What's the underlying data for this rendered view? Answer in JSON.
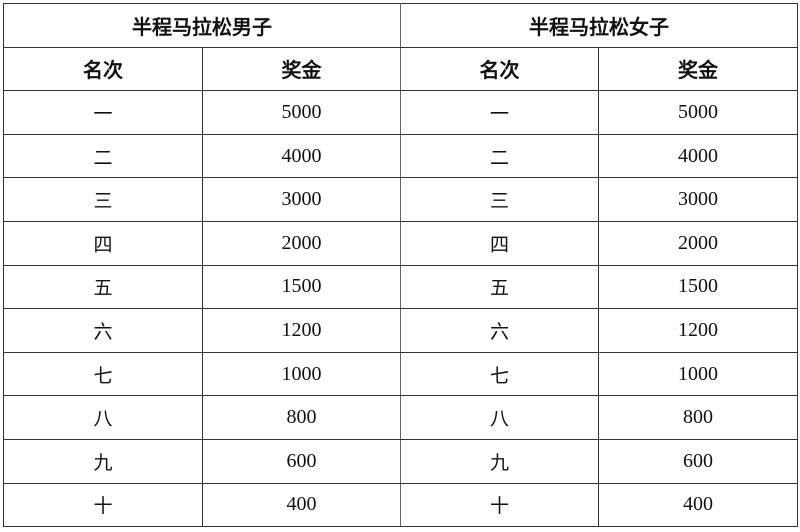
{
  "groups": [
    {
      "title": "半程马拉松男子"
    },
    {
      "title": "半程马拉松女子"
    }
  ],
  "columns": [
    "名次",
    "奖金"
  ],
  "rows": [
    {
      "rank": "一",
      "prize": "5000"
    },
    {
      "rank": "二",
      "prize": "4000"
    },
    {
      "rank": "三",
      "prize": "3000"
    },
    {
      "rank": "四",
      "prize": "2000"
    },
    {
      "rank": "五",
      "prize": "1500"
    },
    {
      "rank": "六",
      "prize": "1200"
    },
    {
      "rank": "七",
      "prize": "1000"
    },
    {
      "rank": "八",
      "prize": "800"
    },
    {
      "rank": "九",
      "prize": "600"
    },
    {
      "rank": "十",
      "prize": "400"
    }
  ]
}
